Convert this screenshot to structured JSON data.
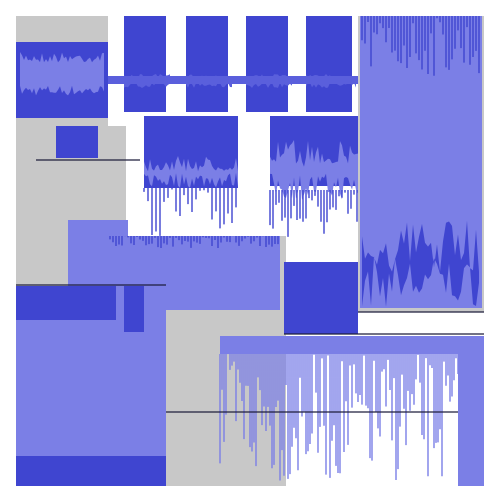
{
  "palette": {
    "background": "#ffffff",
    "panel": "#c8c8c8",
    "panel_border": "#ffffff",
    "wave_light": "#7b7fe6",
    "wave_dark": "#3f45d0",
    "wave_mid": "#5a5fdc",
    "edge_dark": "#1e1e3c"
  }
}
